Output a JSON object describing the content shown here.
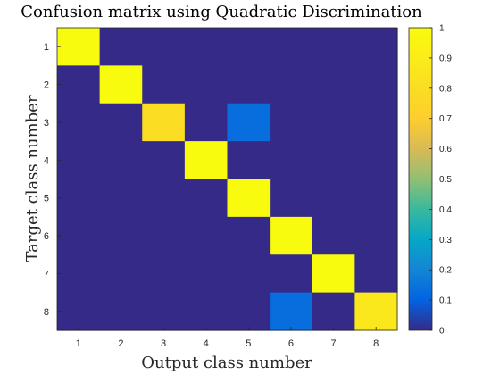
{
  "chart_data": {
    "type": "heatmap",
    "title": "Confusion matrix using Quadratic Discrimination",
    "xlabel": "Output class number",
    "ylabel": "Target class number",
    "x_categories": [
      "1",
      "2",
      "3",
      "4",
      "5",
      "6",
      "7",
      "8"
    ],
    "y_categories": [
      "1",
      "2",
      "3",
      "4",
      "5",
      "6",
      "7",
      "8"
    ],
    "values": [
      [
        1,
        0,
        0,
        0,
        0,
        0,
        0,
        0
      ],
      [
        0,
        1,
        0,
        0,
        0,
        0,
        0,
        0
      ],
      [
        0,
        0,
        0.8,
        0,
        0.13,
        0,
        0,
        0
      ],
      [
        0,
        0,
        0,
        1,
        0,
        0,
        0,
        0
      ],
      [
        0,
        0,
        0,
        0,
        1,
        0,
        0,
        0
      ],
      [
        0,
        0,
        0,
        0,
        0,
        1,
        0,
        0
      ],
      [
        0,
        0,
        0,
        0,
        0,
        0,
        1,
        0
      ],
      [
        0,
        0,
        0,
        0,
        0,
        0.13,
        0,
        0.87
      ]
    ],
    "colorbar": {
      "range": [
        0,
        1
      ],
      "ticks": [
        "0",
        "0.1",
        "0.2",
        "0.3",
        "0.4",
        "0.5",
        "0.6",
        "0.7",
        "0.8",
        "0.9",
        "1"
      ],
      "colormap": "parula",
      "placement": "right"
    }
  }
}
